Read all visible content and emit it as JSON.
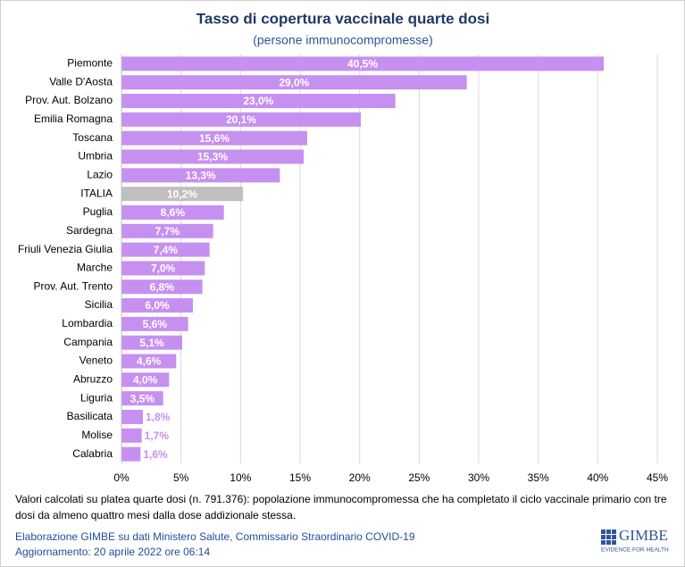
{
  "chart_data": {
    "type": "hbar",
    "title": "Tasso di copertura vaccinale quarte dosi",
    "subtitle": "(persone immunocompromesse)",
    "categories": [
      "Piemonte",
      "Valle D'Aosta",
      "Prov. Aut. Bolzano",
      "Emilia Romagna",
      "Toscana",
      "Umbria",
      "Lazio",
      "ITALIA",
      "Puglia",
      "Sardegna",
      "Friuli Venezia Giulia",
      "Marche",
      "Prov. Aut. Trento",
      "Sicilia",
      "Lombardia",
      "Campania",
      "Veneto",
      "Abruzzo",
      "Liguria",
      "Basilicata",
      "Molise",
      "Calabria"
    ],
    "values": [
      40.5,
      29.0,
      23.0,
      20.1,
      15.6,
      15.3,
      13.3,
      10.2,
      8.6,
      7.7,
      7.4,
      7.0,
      6.8,
      6.0,
      5.6,
      5.1,
      4.6,
      4.0,
      3.5,
      1.8,
      1.7,
      1.6
    ],
    "value_labels": [
      "40,5%",
      "29,0%",
      "23,0%",
      "20,1%",
      "15,6%",
      "15,3%",
      "13,3%",
      "10,2%",
      "8,6%",
      "7,7%",
      "7,4%",
      "7,0%",
      "6,8%",
      "6,0%",
      "5,6%",
      "5,1%",
      "4,6%",
      "4,0%",
      "3,5%",
      "1,8%",
      "1,7%",
      "1,6%"
    ],
    "colors": [
      "#c690f0",
      "#c690f0",
      "#c690f0",
      "#c690f0",
      "#c690f0",
      "#c690f0",
      "#c690f0",
      "#bfbfbf",
      "#c690f0",
      "#c690f0",
      "#c690f0",
      "#c690f0",
      "#c690f0",
      "#c690f0",
      "#c690f0",
      "#c690f0",
      "#c690f0",
      "#c690f0",
      "#c690f0",
      "#c690f0",
      "#c690f0",
      "#c690f0"
    ],
    "xlim": [
      0,
      45
    ],
    "xticks": [
      {
        "value": 0,
        "label": "0%"
      },
      {
        "value": 5,
        "label": "5%"
      },
      {
        "value": 10,
        "label": "10%"
      },
      {
        "value": 15,
        "label": "15%"
      },
      {
        "value": 20,
        "label": "20%"
      },
      {
        "value": 25,
        "label": "25%"
      },
      {
        "value": 30,
        "label": "30%"
      },
      {
        "value": 35,
        "label": "35%"
      },
      {
        "value": 40,
        "label": "40%"
      },
      {
        "value": 45,
        "label": "45%"
      }
    ],
    "grid": true,
    "footnote": "Valori calcolati su platea quarte dosi (n. 791.376): popolazione immunocompromessa che ha completato il ciclo vaccinale primario con tre dosi da almeno quattro mesi dalla dose addizionale stessa.",
    "source": "Elaborazione GIMBE su dati Ministero Salute, Commissario Straordinario COVID-19",
    "updated": "Aggiornamento: 20 aprile 2022 ore 06:14"
  },
  "logo": {
    "name": "GIMBE",
    "tagline": "EVIDENCE FOR HEALTH"
  }
}
